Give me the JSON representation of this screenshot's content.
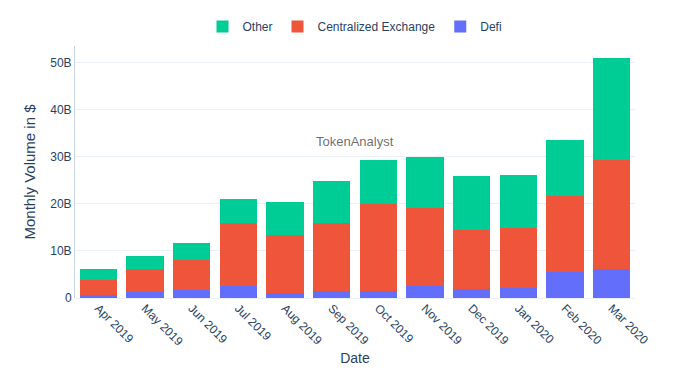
{
  "chart_data": {
    "type": "bar",
    "stacked": true,
    "grid": true,
    "legend": "top",
    "x_label": "Date",
    "y_label": "Monthly Volume in $",
    "annotations": [
      "TokenAnalyst"
    ],
    "categories": [
      "Apr 2019",
      "May 2019",
      "Jun 2019",
      "Jul 2019",
      "Aug 2019",
      "Sep 2019",
      "Oct 2019",
      "Nov 2019",
      "Dec 2019",
      "Jan 2020",
      "Feb 2020",
      "Mar 2020"
    ],
    "series": [
      {
        "name": "Defi",
        "color": "#636efa",
        "values": [
          600000000,
          1300000000,
          1700000000,
          2500000000,
          1100000000,
          1500000000,
          1500000000,
          2500000000,
          1900000000,
          2100000000,
          5600000000,
          6100000000
        ]
      },
      {
        "name": "Centralized Exchange",
        "color": "#ef553b",
        "values": [
          3200000000,
          4800000000,
          6300000000,
          13500000000,
          12300000000,
          14500000000,
          18400000000,
          16600000000,
          12500000000,
          12800000000,
          16000000000,
          23100000000
        ]
      },
      {
        "name": "Other",
        "color": "#00cc96",
        "values": [
          2300000000,
          2900000000,
          3600000000,
          5000000000,
          7000000000,
          8900000000,
          9500000000,
          10900000000,
          11400000000,
          11200000000,
          12000000000,
          21700000000
        ]
      }
    ],
    "ylim": [
      0,
      53500000000
    ],
    "yticks": [
      0,
      {
        "value": 10000000000,
        "label": "10B"
      },
      {
        "value": 20000000000,
        "label": "20B"
      },
      {
        "value": 30000000000,
        "label": "30B"
      },
      {
        "value": 40000000000,
        "label": "40B"
      },
      {
        "value": 50000000000,
        "label": "50B"
      }
    ]
  }
}
